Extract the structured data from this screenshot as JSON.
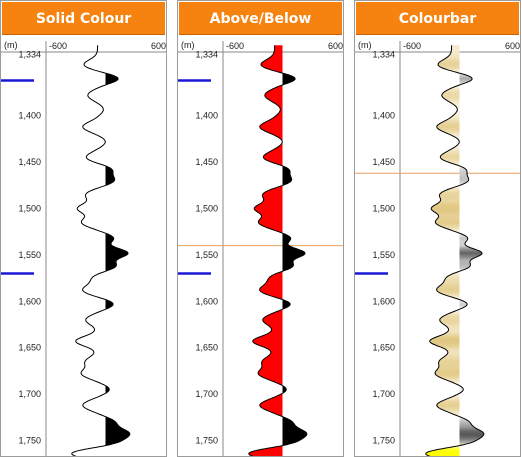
{
  "panels": [
    {
      "id": "solid",
      "title": "Solid Colour",
      "mode": "solid"
    },
    {
      "id": "abovebelow",
      "title": "Above/Below",
      "mode": "abovebelow"
    },
    {
      "id": "colourbar",
      "title": "Colourbar",
      "mode": "colourbar"
    }
  ],
  "axis": {
    "min_label": "-600",
    "max_label": "600",
    "corner_label": "(m)"
  },
  "depth": {
    "min": 1324,
    "max": 1780,
    "labels": [
      "1,334",
      "1,400",
      "1,450",
      "1,500",
      "1,550",
      "1,600",
      "1,650",
      "1,700",
      "1,750"
    ],
    "label_values": [
      1334,
      1400,
      1450,
      1500,
      1550,
      1600,
      1650,
      1700,
      1750
    ]
  },
  "colors": {
    "header_bg": "#f6820f",
    "header_text": "#ffffff",
    "solid_fill": "#000000",
    "above_fill": "#000000",
    "below_fill": "#ff0000",
    "marker_blue": "#1a1ad6",
    "marker_orange": "#e8a060",
    "curve": "#000000"
  },
  "markers": {
    "solid": [
      {
        "type": "blue",
        "depth": 1362
      },
      {
        "type": "blue",
        "depth": 1570
      }
    ],
    "abovebelow": [
      {
        "type": "blue",
        "depth": 1362
      },
      {
        "type": "blue",
        "depth": 1570
      },
      {
        "type": "orange",
        "depth": 1540
      }
    ],
    "colourbar": [
      {
        "type": "blue",
        "depth": 1570
      },
      {
        "type": "orange",
        "depth": 1462
      }
    ]
  },
  "wavelet": {
    "center": -80,
    "lobes": [
      {
        "d": 1345,
        "a": -140
      },
      {
        "d": 1360,
        "a": 210
      },
      {
        "d": 1378,
        "a": -100
      },
      {
        "d": 1393,
        "a": 60
      },
      {
        "d": 1412,
        "a": -150
      },
      {
        "d": 1428,
        "a": 80
      },
      {
        "d": 1445,
        "a": -120
      },
      {
        "d": 1458,
        "a": 140
      },
      {
        "d": 1470,
        "a": 160
      },
      {
        "d": 1485,
        "a": -120
      },
      {
        "d": 1500,
        "a": -200
      },
      {
        "d": 1515,
        "a": -160
      },
      {
        "d": 1532,
        "a": 160
      },
      {
        "d": 1548,
        "a": 300
      },
      {
        "d": 1562,
        "a": 180
      },
      {
        "d": 1575,
        "a": -60
      },
      {
        "d": 1588,
        "a": -150
      },
      {
        "d": 1603,
        "a": 160
      },
      {
        "d": 1620,
        "a": -120
      },
      {
        "d": 1643,
        "a": -220
      },
      {
        "d": 1665,
        "a": -120
      },
      {
        "d": 1678,
        "a": -160
      },
      {
        "d": 1695,
        "a": 120
      },
      {
        "d": 1712,
        "a": -150
      },
      {
        "d": 1730,
        "a": 160
      },
      {
        "d": 1742,
        "a": 280
      },
      {
        "d": 1752,
        "a": 180
      },
      {
        "d": 1764,
        "a": -280
      },
      {
        "d": 1776,
        "a": 80
      }
    ]
  }
}
